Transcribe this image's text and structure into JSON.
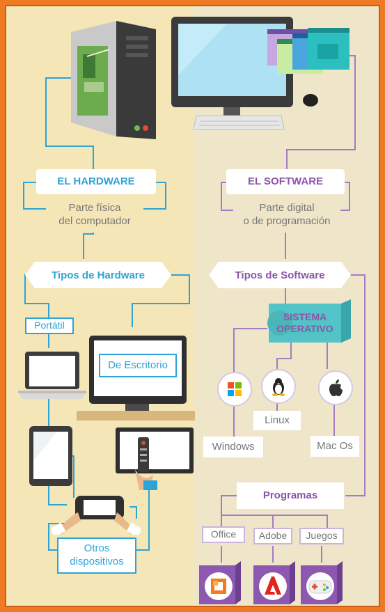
{
  "hardware": {
    "title": "EL HARDWARE",
    "description_line1": "Parte física",
    "description_line2": "del computador",
    "types_title": "Tipos de Hardware",
    "laptop_label": "Portátil",
    "desktop_label": "De Escritorio",
    "others_line1": "Otros",
    "others_line2": "dispositivos"
  },
  "software": {
    "title": "EL SOFTWARE",
    "description_line1": "Parte digital",
    "description_line2": "o de programación",
    "types_title": "Tipos de Software",
    "os_line1": "SISTEMA",
    "os_line2": "OPERATIVO",
    "os_windows": "Windows",
    "os_linux": "Linux",
    "os_mac": "Mac Os",
    "programs_title": "Programas",
    "program_office": "Office",
    "program_adobe": "Adobe",
    "program_games": "Juegos"
  },
  "colors": {
    "border": "#f07a23",
    "hardware_accent": "#2ea3d6",
    "software_accent": "#8a55a8",
    "os_box": "#52c3c6"
  },
  "icons": [
    "pc-tower-icon",
    "monitor-icon",
    "keyboard-icon",
    "mouse-icon",
    "laptop-icon",
    "desktop-monitor-icon",
    "tablet-icon",
    "tv-remote-icon",
    "handheld-console-icon",
    "windows-logo-icon",
    "linux-penguin-icon",
    "apple-logo-icon",
    "office-logo-icon",
    "adobe-logo-icon",
    "gamepad-icon"
  ]
}
